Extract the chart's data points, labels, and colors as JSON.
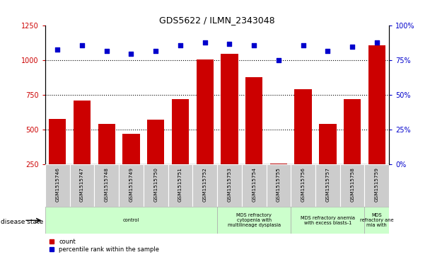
{
  "title": "GDS5622 / ILMN_2343048",
  "samples": [
    "GSM1515746",
    "GSM1515747",
    "GSM1515748",
    "GSM1515749",
    "GSM1515750",
    "GSM1515751",
    "GSM1515752",
    "GSM1515753",
    "GSM1515754",
    "GSM1515755",
    "GSM1515756",
    "GSM1515757",
    "GSM1515758",
    "GSM1515759"
  ],
  "counts": [
    580,
    710,
    540,
    470,
    575,
    720,
    1005,
    1050,
    880,
    255,
    790,
    540,
    720,
    1110
  ],
  "percentiles": [
    83,
    86,
    82,
    80,
    82,
    86,
    88,
    87,
    86,
    75,
    86,
    82,
    85,
    88
  ],
  "disease_groups": [
    {
      "label": "control",
      "start": 0,
      "end": 7,
      "color": "#ccffcc"
    },
    {
      "label": "MDS refractory\ncytopenia with\nmultilineage dysplasia",
      "start": 7,
      "end": 10,
      "color": "#ccffcc"
    },
    {
      "label": "MDS refractory anemia\nwith excess blasts-1",
      "start": 10,
      "end": 13,
      "color": "#ccffcc"
    },
    {
      "label": "MDS\nrefractory ane\nmia with",
      "start": 13,
      "end": 14,
      "color": "#ccffcc"
    }
  ],
  "bar_color": "#cc0000",
  "dot_color": "#0000cc",
  "ylim_left": [
    250,
    1250
  ],
  "ylim_right": [
    0,
    100
  ],
  "yticks_left": [
    250,
    500,
    750,
    1000,
    1250
  ],
  "yticks_right": [
    0,
    25,
    50,
    75,
    100
  ],
  "bg_color": "#ffffff",
  "label_count": "count",
  "label_percentile": "percentile rank within the sample",
  "disease_state_label": "disease state"
}
